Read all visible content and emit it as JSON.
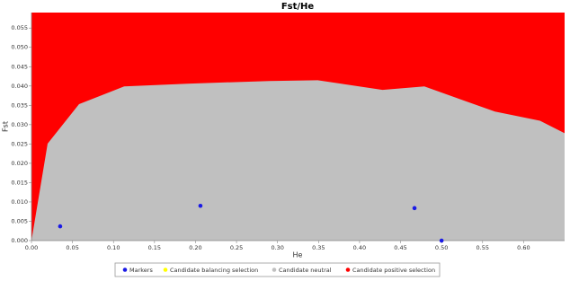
{
  "chart_data": {
    "type": "area",
    "title": "Fst/He",
    "x_label": "He",
    "y_label": "Fst",
    "xlim": [
      0,
      0.65
    ],
    "ylim": [
      0,
      0.059
    ],
    "xticks": [
      {
        "value": 0,
        "label": "0.00"
      },
      0.05,
      {
        "value": 0.1,
        "label": "0.10"
      },
      0.15,
      {
        "value": 0.2,
        "label": "0.20"
      },
      0.25,
      {
        "value": 0.3,
        "label": "0.30"
      },
      0.35,
      {
        "value": 0.4,
        "label": "0.40"
      },
      0.45,
      {
        "value": 0.5,
        "label": "0.50"
      },
      0.55,
      {
        "value": 0.6,
        "label": "0.60"
      }
    ],
    "yticks": [
      {
        "value": 0,
        "label": "0.000"
      },
      0.005,
      {
        "value": 0.01,
        "label": "0.010"
      },
      0.015,
      {
        "value": 0.02,
        "label": "0.020"
      },
      0.025,
      {
        "value": 0.03,
        "label": "0.030"
      },
      0.035,
      {
        "value": 0.04,
        "label": "0.040"
      },
      0.045,
      {
        "value": 0.05,
        "label": "0.050"
      },
      0.055
    ],
    "series": [
      {
        "name": "Markers",
        "color": "#1a1ae6",
        "kind": "scatter",
        "x": [
          0.035,
          0.206,
          0.467,
          0.5
        ],
        "values": [
          0.0037,
          0.009,
          0.0084,
          0
        ]
      },
      {
        "name": "Candidate balancing selection",
        "color": "#ffff00",
        "kind": "area",
        "x": [],
        "values": []
      },
      {
        "name": "Candidate neutral",
        "color": "#c0c0c0",
        "kind": "area",
        "x": [
          0,
          0.0197,
          0.058,
          0.113,
          0.19,
          0.29,
          0.349,
          0.428,
          0.479,
          0.521,
          0.565,
          0.62,
          0.65
        ],
        "values": [
          0,
          0.0251,
          0.0353,
          0.0399,
          0.0406,
          0.0413,
          0.0415,
          0.039,
          0.0399,
          0.0367,
          0.0334,
          0.031,
          0.0278
        ]
      },
      {
        "name": "Candidate positive selection",
        "color": "#ff0000",
        "kind": "fill-above",
        "x": [],
        "values": []
      }
    ]
  }
}
